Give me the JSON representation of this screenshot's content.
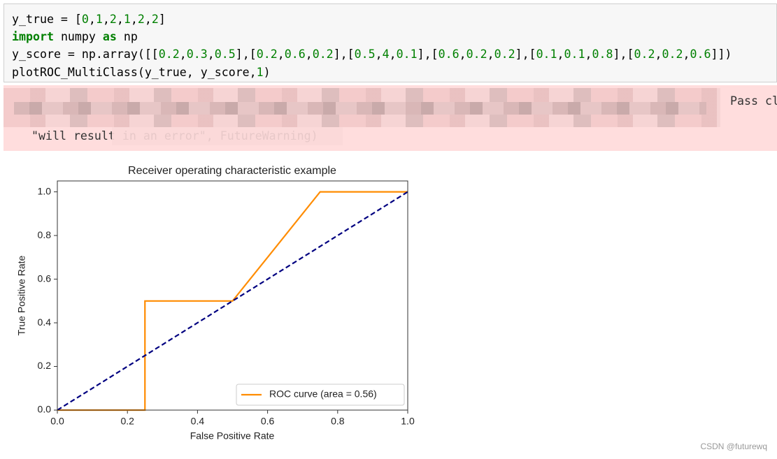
{
  "code": {
    "lines": [
      "y_true = [0,1,2,1,2,2]",
      "import numpy as np",
      "y_score = np.array([[0.2,0.3,0.5],[0.2,0.6,0.2],[0.5,4,0.1],[0.6,0.2,0.2],[0.1,0.1,0.8],[0.2,0.2,0.6]])",
      "plotROC_MultiClass(y_true, y_score,1)"
    ]
  },
  "warning": {
    "fragment": "Pass cl",
    "line2": "\"will result in an error\", FutureWarning)"
  },
  "chart_data": {
    "type": "line",
    "title": "Receiver operating characteristic example",
    "xlabel": "False Positive Rate",
    "ylabel": "True Positive Rate",
    "xlim": [
      0,
      1
    ],
    "ylim": [
      0,
      1.05
    ],
    "xticks": [
      {
        "value": 0,
        "label": "0.0"
      },
      {
        "value": 0.2,
        "label": "0.2"
      },
      {
        "value": 0.4,
        "label": "0.4"
      },
      {
        "value": 0.6,
        "label": "0.6"
      },
      {
        "value": 0.8,
        "label": "0.8"
      },
      {
        "value": 1,
        "label": "1.0"
      }
    ],
    "yticks": [
      {
        "value": 0,
        "label": "0.0"
      },
      {
        "value": 0.2,
        "label": "0.2"
      },
      {
        "value": 0.4,
        "label": "0.4"
      },
      {
        "value": 0.6,
        "label": "0.6"
      },
      {
        "value": 0.8,
        "label": "0.8"
      },
      {
        "value": 1,
        "label": "1.0"
      }
    ],
    "legend": "lower right",
    "series": [
      {
        "name": "ROC curve (area = 0.56)",
        "color": "#ff8c00",
        "dash": false,
        "x": [
          0,
          0.25,
          0.25,
          0.5,
          0.75,
          1
        ],
        "values": [
          0,
          0,
          0.5,
          0.5,
          1,
          1
        ]
      },
      {
        "color": "#000080",
        "dash": true,
        "x": [
          0,
          1
        ],
        "values": [
          0,
          1
        ]
      }
    ]
  },
  "watermark": "CSDN @futurewq"
}
